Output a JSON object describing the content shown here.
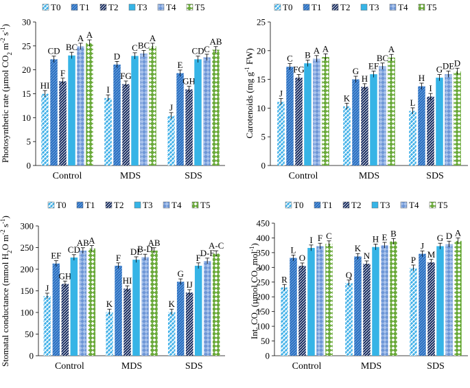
{
  "legend_labels": [
    "T0",
    "T1",
    "T2",
    "T3",
    "T4",
    "T5"
  ],
  "series_colors": [
    "#3fb0e8",
    "#2a6fc0",
    "#14295e",
    "#36b4e6",
    "#6d96d6",
    "#6aaa3a"
  ],
  "chart_data": [
    {
      "type": "bar",
      "panel": "top-left",
      "ylabel": "Photosynthetic rate (µmol CO₂ m⁻² s⁻¹)",
      "ylabel_parts": {
        "a": "Photosynthetic rate (µmol CO",
        "b": "2",
        "c": " m",
        "d": "-2",
        "e": " s",
        "f": "-1",
        "g": ")"
      },
      "ylim": [
        0,
        30
      ],
      "yticks": [
        "0",
        "5",
        "10",
        "15",
        "20",
        "25",
        "30"
      ],
      "categories": [
        "Control",
        "MDS",
        "SDS"
      ],
      "series": [
        {
          "name": "T0",
          "values": [
            15.0,
            14.1,
            10.4
          ],
          "labels": [
            "HI",
            "I",
            "J"
          ]
        },
        {
          "name": "T1",
          "values": [
            22.2,
            21.1,
            19.3
          ],
          "labels": [
            "CD",
            "D",
            "E"
          ]
        },
        {
          "name": "T2",
          "values": [
            17.6,
            17.0,
            15.9
          ],
          "labels": [
            "F",
            "FG",
            "GH"
          ]
        },
        {
          "name": "T3",
          "values": [
            23.0,
            22.9,
            22.2
          ],
          "labels": [
            "BC",
            "C",
            "CD"
          ]
        },
        {
          "name": "T4",
          "values": [
            24.9,
            23.4,
            22.6
          ],
          "labels": [
            "A",
            "BC",
            "C"
          ]
        },
        {
          "name": "T5",
          "values": [
            25.6,
            24.9,
            24.2
          ],
          "labels": [
            "A",
            "A",
            "AB"
          ]
        }
      ]
    },
    {
      "type": "bar",
      "panel": "top-right",
      "ylabel": "Carotenoids (mg g⁻¹ FW)",
      "ylabel_parts": {
        "a": "Carotenoids (mg g",
        "b": "-1",
        "c": " FW)"
      },
      "ylim": [
        0,
        25
      ],
      "yticks": [
        "0",
        "5",
        "10",
        "15",
        "20",
        "25"
      ],
      "categories": [
        "Control",
        "MDS",
        "SDS"
      ],
      "series": [
        {
          "name": "T0",
          "values": [
            11.1,
            10.3,
            9.5
          ],
          "labels": [
            "J",
            "K",
            "L"
          ]
        },
        {
          "name": "T1",
          "values": [
            17.2,
            15.0,
            13.8
          ],
          "labels": [
            "C",
            "G",
            "H"
          ]
        },
        {
          "name": "T2",
          "values": [
            15.3,
            13.7,
            12.0
          ],
          "labels": [
            "FG",
            "H",
            "I"
          ]
        },
        {
          "name": "T3",
          "values": [
            17.8,
            15.9,
            15.3
          ],
          "labels": [
            "B",
            "EF",
            "G"
          ]
        },
        {
          "name": "T4",
          "values": [
            18.6,
            17.3,
            15.9
          ],
          "labels": [
            "A",
            "BC",
            "DE"
          ]
        },
        {
          "name": "T5",
          "values": [
            18.9,
            18.8,
            16.4
          ],
          "labels": [
            "A",
            "A",
            "D"
          ]
        }
      ]
    },
    {
      "type": "bar",
      "panel": "bottom-left",
      "ylabel": "Stomatal conductance (mmol H₂O m⁻² s⁻¹)",
      "ylabel_parts": {
        "a": "Stomatal conductance (mmol H",
        "b": "2",
        "c": "O m",
        "d": "-2",
        "e": " s",
        "f": "-1",
        "g": ")"
      },
      "ylim": [
        0,
        300
      ],
      "yticks": [
        "0",
        "50",
        "100",
        "150",
        "200",
        "250",
        "300"
      ],
      "categories": [
        "Control",
        "MDS",
        "SDS"
      ],
      "series": [
        {
          "name": "T0",
          "values": [
            138,
            101,
            101
          ],
          "labels": [
            "J",
            "K",
            "K"
          ]
        },
        {
          "name": "T1",
          "values": [
            213,
            208,
            171
          ],
          "labels": [
            "EF",
            "F",
            "G"
          ]
        },
        {
          "name": "T2",
          "values": [
            166,
            155,
            146
          ],
          "labels": [
            "GH",
            "HI",
            "IJ"
          ]
        },
        {
          "name": "T3",
          "values": [
            227,
            222,
            208
          ],
          "labels": [
            "CD",
            "DE",
            "F"
          ]
        },
        {
          "name": "T4",
          "values": [
            243,
            228,
            219
          ],
          "labels": [
            "AB",
            "B-D",
            "D-F"
          ]
        },
        {
          "name": "T5",
          "values": [
            248,
            243,
            236
          ],
          "labels": [
            "A",
            "AB",
            "A-C"
          ]
        }
      ]
    },
    {
      "type": "bar",
      "panel": "bottom-right",
      "ylabel": "Int. CO₂ (µmol CO₂ mol⁻¹)",
      "ylabel_parts": {
        "a": "Int. CO",
        "b": "2",
        "c": " (µmol CO",
        "d": "2",
        "e": " mol",
        "f": "-1",
        "g": ")"
      },
      "ylim": [
        0,
        450
      ],
      "yticks": [
        "0",
        "50",
        "100",
        "150",
        "200",
        "250",
        "300",
        "350",
        "400",
        "450"
      ],
      "categories": [
        "Control",
        "MDS",
        "SDS"
      ],
      "series": [
        {
          "name": "T0",
          "values": [
            232,
            247,
            298
          ],
          "labels": [
            "R",
            "Q",
            "P"
          ]
        },
        {
          "name": "T1",
          "values": [
            332,
            337,
            346
          ],
          "labels": [
            "L",
            "K",
            "J"
          ]
        },
        {
          "name": "T2",
          "values": [
            305,
            312,
            317
          ],
          "labels": [
            "O",
            "N",
            "M"
          ]
        },
        {
          "name": "T3",
          "values": [
            366,
            369,
            372
          ],
          "labels": [
            "I",
            "H",
            "G"
          ]
        },
        {
          "name": "T4",
          "values": [
            372,
            375,
            379
          ],
          "labels": [
            "F",
            "E",
            "D"
          ]
        },
        {
          "name": "T5",
          "values": [
            380,
            388,
            390
          ],
          "labels": [
            "C",
            "B",
            "A"
          ]
        }
      ]
    }
  ]
}
